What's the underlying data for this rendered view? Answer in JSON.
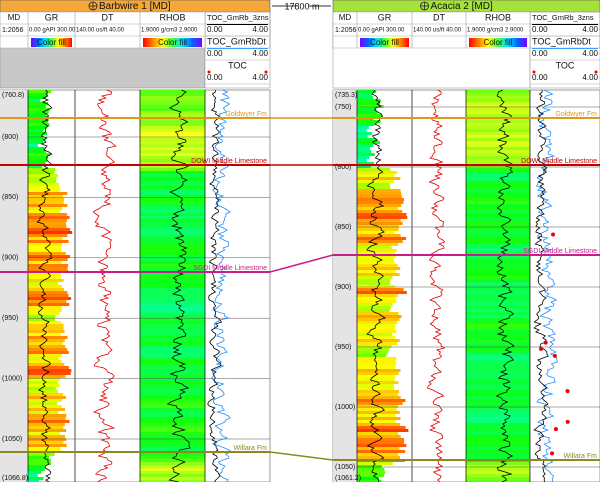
{
  "spacing": "17800 m",
  "wells": [
    {
      "title": "Barbwire 1 [MD]",
      "title_color": "#f4a83a",
      "header": {
        "md": "MD",
        "scale": "1:2056",
        "tracks": [
          {
            "name": "GR",
            "range": "0.00 gAPI 300.00",
            "fill": "Color fill"
          },
          {
            "name": "DT",
            "range": "140.00 us/ft 40.00"
          },
          {
            "name": "RHOB",
            "range": "1.9000 g/cm3 2.9000",
            "fill": "Color fill"
          }
        ],
        "toc": [
          {
            "name": "TOC_GmRb_3zns",
            "min": "0.00",
            "max": "4.00"
          },
          {
            "name": "TOC_GmRbDt",
            "min": "0.00",
            "max": "4.00"
          },
          {
            "name": "TOC",
            "min": "0.00",
            "max": "4.00"
          }
        ]
      },
      "depth_ticks": [
        {
          "value": 760.8,
          "label": "(760.8)"
        },
        {
          "value": 800,
          "label": "(800)"
        },
        {
          "value": 850,
          "label": "(850)"
        },
        {
          "value": 900,
          "label": "(900)"
        },
        {
          "value": 950,
          "label": "(950)"
        },
        {
          "value": 1000,
          "label": "(1000)"
        },
        {
          "value": 1050,
          "label": "(1050)"
        },
        {
          "value": 1066.8,
          "label": "(1066.8)"
        }
      ],
      "tops": [
        {
          "name": "Goldwyer Fm",
          "color": "#d99a1e"
        },
        {
          "name": "DOWI Middle Limestone",
          "color": "#c40000"
        },
        {
          "name": "SGDI Middle Limestone",
          "color": "#c81e8c"
        },
        {
          "name": "Willara Fm",
          "color": "#8c8a1e"
        }
      ]
    },
    {
      "title": "Acacia 2 [MD]",
      "title_color": "#a6e23a",
      "header": {
        "md": "MD",
        "scale": "1:2056",
        "tracks": [
          {
            "name": "GR",
            "range": "0.00 gAPI 300.00",
            "fill": "Color fill"
          },
          {
            "name": "DT",
            "range": "140.00 us/ft 40.00"
          },
          {
            "name": "RHOB",
            "range": "1.9000 g/cm3 2.9000",
            "fill": "Color fill"
          }
        ],
        "toc": [
          {
            "name": "TOC_GmRb_3zns",
            "min": "0.00",
            "max": "4.00"
          },
          {
            "name": "TOC_GmRbDt",
            "min": "0.00",
            "max": "4.00"
          },
          {
            "name": "TOC",
            "min": "0.00",
            "max": "4.00"
          }
        ]
      },
      "depth_ticks": [
        {
          "value": 735.3,
          "label": "(735.3)"
        },
        {
          "value": 750,
          "label": "(750)"
        },
        {
          "value": 800,
          "label": "(800)"
        },
        {
          "value": 850,
          "label": "(850)"
        },
        {
          "value": 900,
          "label": "(900)"
        },
        {
          "value": 950,
          "label": "(950)"
        },
        {
          "value": 1000,
          "label": "(1000)"
        },
        {
          "value": 1050,
          "label": "(1050)"
        },
        {
          "value": 1061.2,
          "label": "(1061.2)"
        }
      ],
      "tops": [
        {
          "name": "Goldwyer Fm",
          "color": "#d99a1e"
        },
        {
          "name": "DOWI Middle Limestone",
          "color": "#c40000"
        },
        {
          "name": "SGDI Middle Limestone",
          "color": "#c81e8c"
        },
        {
          "name": "Willara Fm",
          "color": "#8c8a1e"
        }
      ]
    }
  ]
}
